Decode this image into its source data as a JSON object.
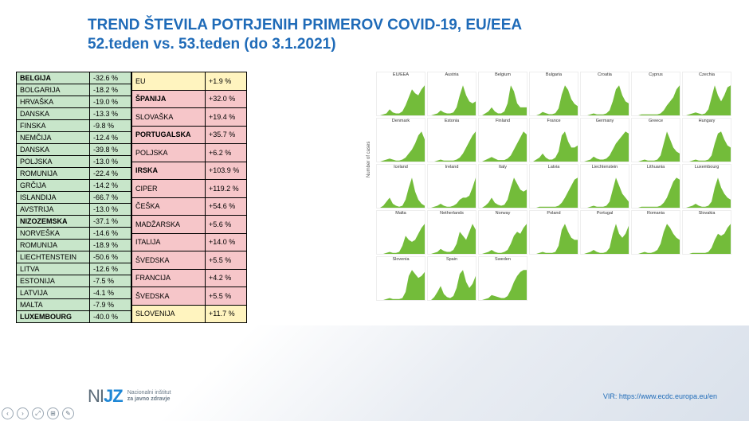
{
  "title_line1": "TREND ŠTEVILA POTRJENIH PRIMEROV COVID-19, EU/EEA",
  "title_line2": "52.teden vs. 53.teden (do 3.1.2021)",
  "source_label": "VIR: https://www.ecdc.europa.eu/en",
  "logo": {
    "mark_pre": "NI",
    "mark_accent": "JZ",
    "text1": "Nacionalni inštitut",
    "text2": "za javno zdravje"
  },
  "colors": {
    "green": "#c8e6ca",
    "pink": "#f6c6c9",
    "yellow": "#fff4bf",
    "chart_fill": "#6bb82f",
    "title": "#1f6bb8"
  },
  "table_left": [
    {
      "c": "BELGIJA",
      "v": "-32.6 %",
      "bg": "green",
      "bold": true
    },
    {
      "c": "BOLGARIJA",
      "v": "-18.2 %",
      "bg": "green"
    },
    {
      "c": "HRVAŠKA",
      "v": "-19.0 %",
      "bg": "green"
    },
    {
      "c": "DANSKA",
      "v": "-13.3 %",
      "bg": "green"
    },
    {
      "c": "FINSKA",
      "v": "-9.8 %",
      "bg": "green"
    },
    {
      "c": "NEMČIJA",
      "v": "-12.4 %",
      "bg": "green"
    },
    {
      "c": "DANSKA",
      "v": "-39.8 %",
      "bg": "green"
    },
    {
      "c": "POLJSKA",
      "v": "-13.0 %",
      "bg": "green"
    },
    {
      "c": "ROMUNIJA",
      "v": "-22.4 %",
      "bg": "green"
    },
    {
      "c": "GRČIJA",
      "v": "-14.2 %",
      "bg": "green"
    },
    {
      "c": "ISLANDIJA",
      "v": "-66.7 %",
      "bg": "green"
    },
    {
      "c": "AVSTRIJA",
      "v": "-13.0 %",
      "bg": "green"
    },
    {
      "c": "NIZOZEMSKA",
      "v": "-37.1 %",
      "bg": "green",
      "bold": true
    },
    {
      "c": "NORVEŠKA",
      "v": "-14.6 %",
      "bg": "green"
    },
    {
      "c": "ROMUNIJA",
      "v": "-18.9 %",
      "bg": "green"
    },
    {
      "c": "LIECHTENSTEIN",
      "v": "-50.6 %",
      "bg": "green"
    },
    {
      "c": "LITVA",
      "v": "-12.6 %",
      "bg": "green"
    },
    {
      "c": "ESTONIJA",
      "v": "-7.5 %",
      "bg": "green"
    },
    {
      "c": "LATVIJA",
      "v": "-4.1 %",
      "bg": "green"
    },
    {
      "c": "MALTA",
      "v": "-7.9 %",
      "bg": "green"
    },
    {
      "c": "LUXEMBOURG",
      "v": "-40.0 %",
      "bg": "green",
      "bold": true
    }
  ],
  "table_right": [
    {
      "c": "EU",
      "v": "+1.9 %",
      "bg": "yellow"
    },
    {
      "c": "ŠPANIJA",
      "v": "+32.0 %",
      "bg": "pink",
      "bold": true
    },
    {
      "c": "SLOVAŠKA",
      "v": "+19.4 %",
      "bg": "pink"
    },
    {
      "c": "PORTUGALSKA",
      "v": "+35.7 %",
      "bg": "pink",
      "bold": true
    },
    {
      "c": "POLJSKA",
      "v": "+6.2 %",
      "bg": "pink"
    },
    {
      "c": "IRSKA",
      "v": "+103.9 %",
      "bg": "pink",
      "bold": true
    },
    {
      "c": "CIPER",
      "v": "+119.2 %",
      "bg": "pink"
    },
    {
      "c": "ČEŠKA",
      "v": "+54.6 %",
      "bg": "pink"
    },
    {
      "c": "MADŽARSKA",
      "v": "+5.6 %",
      "bg": "pink"
    },
    {
      "c": "ITALIJA",
      "v": "+14.0 %",
      "bg": "pink"
    },
    {
      "c": "ŠVEDSKA",
      "v": "+5.5 %",
      "bg": "pink"
    },
    {
      "c": "FRANCIJA",
      "v": "+4.2 %",
      "bg": "pink"
    },
    {
      "c": "ŠVEDSKA",
      "v": "+5.5 %",
      "bg": "pink"
    },
    {
      "c": "SLOVENIJA",
      "v": "+11.7 %",
      "bg": "yellow"
    }
  ],
  "charts": {
    "ylabel": "Number of cases",
    "fill": "#6bb82f",
    "countries": [
      {
        "name": "EU/EEA",
        "shape": [
          0,
          0,
          1,
          2,
          6,
          3,
          2,
          2,
          4,
          10,
          18,
          26,
          22,
          20,
          26,
          30
        ]
      },
      {
        "name": "Austria",
        "shape": [
          0,
          0,
          1,
          2,
          5,
          3,
          2,
          2,
          3,
          8,
          20,
          30,
          20,
          14,
          12,
          14
        ]
      },
      {
        "name": "Belgium",
        "shape": [
          0,
          0,
          2,
          4,
          8,
          4,
          2,
          2,
          4,
          12,
          30,
          24,
          12,
          8,
          8,
          8
        ]
      },
      {
        "name": "Bulgaria",
        "shape": [
          0,
          0,
          0,
          1,
          3,
          2,
          1,
          1,
          2,
          6,
          18,
          26,
          22,
          14,
          10,
          8
        ]
      },
      {
        "name": "Croatia",
        "shape": [
          0,
          0,
          0,
          1,
          2,
          1,
          1,
          1,
          2,
          5,
          14,
          26,
          30,
          20,
          14,
          12
        ]
      },
      {
        "name": "Cyprus",
        "shape": [
          0,
          0,
          0,
          1,
          1,
          1,
          1,
          1,
          1,
          2,
          5,
          10,
          14,
          18,
          26,
          30
        ]
      },
      {
        "name": "Czechia",
        "shape": [
          0,
          0,
          1,
          2,
          3,
          2,
          1,
          2,
          6,
          18,
          30,
          20,
          14,
          20,
          28,
          30
        ]
      },
      {
        "name": "Denmark",
        "shape": [
          0,
          0,
          1,
          2,
          3,
          2,
          1,
          1,
          2,
          4,
          8,
          12,
          18,
          26,
          30,
          22
        ]
      },
      {
        "name": "Estonia",
        "shape": [
          0,
          0,
          0,
          1,
          2,
          1,
          1,
          1,
          1,
          2,
          4,
          8,
          14,
          20,
          26,
          30
        ]
      },
      {
        "name": "Finland",
        "shape": [
          0,
          0,
          1,
          2,
          3,
          2,
          1,
          1,
          1,
          2,
          4,
          8,
          12,
          16,
          20,
          18
        ]
      },
      {
        "name": "France",
        "shape": [
          0,
          0,
          2,
          4,
          8,
          4,
          2,
          2,
          4,
          10,
          26,
          30,
          20,
          14,
          14,
          16
        ]
      },
      {
        "name": "Germany",
        "shape": [
          0,
          0,
          1,
          2,
          5,
          3,
          2,
          2,
          3,
          6,
          12,
          18,
          22,
          26,
          30,
          28
        ]
      },
      {
        "name": "Greece",
        "shape": [
          0,
          0,
          0,
          1,
          2,
          1,
          1,
          1,
          2,
          6,
          18,
          30,
          22,
          14,
          10,
          8
        ]
      },
      {
        "name": "Hungary",
        "shape": [
          0,
          0,
          0,
          1,
          2,
          1,
          1,
          1,
          2,
          6,
          18,
          28,
          30,
          22,
          16,
          14
        ]
      },
      {
        "name": "Iceland",
        "shape": [
          0,
          0,
          2,
          6,
          10,
          4,
          2,
          1,
          2,
          8,
          20,
          30,
          16,
          8,
          4,
          2
        ]
      },
      {
        "name": "Ireland",
        "shape": [
          0,
          0,
          1,
          2,
          4,
          2,
          1,
          1,
          2,
          4,
          8,
          10,
          10,
          12,
          20,
          30
        ]
      },
      {
        "name": "Italy",
        "shape": [
          0,
          0,
          2,
          5,
          10,
          5,
          3,
          2,
          3,
          8,
          20,
          30,
          24,
          18,
          16,
          18
        ]
      },
      {
        "name": "Latvia",
        "shape": [
          0,
          0,
          0,
          1,
          1,
          1,
          1,
          1,
          1,
          2,
          5,
          10,
          16,
          22,
          28,
          30
        ]
      },
      {
        "name": "Liechtenstein",
        "shape": [
          0,
          0,
          0,
          1,
          2,
          1,
          1,
          1,
          2,
          6,
          18,
          30,
          22,
          14,
          10,
          6
        ]
      },
      {
        "name": "Lithuania",
        "shape": [
          0,
          0,
          0,
          1,
          1,
          1,
          1,
          1,
          1,
          2,
          5,
          10,
          18,
          26,
          30,
          28
        ]
      },
      {
        "name": "Luxembourg",
        "shape": [
          0,
          0,
          1,
          2,
          4,
          2,
          1,
          1,
          2,
          6,
          20,
          30,
          20,
          14,
          10,
          8
        ]
      },
      {
        "name": "Malta",
        "shape": [
          0,
          0,
          0,
          1,
          2,
          1,
          1,
          2,
          8,
          18,
          14,
          12,
          14,
          20,
          26,
          30
        ]
      },
      {
        "name": "Netherlands",
        "shape": [
          0,
          0,
          1,
          2,
          5,
          3,
          2,
          2,
          4,
          10,
          22,
          18,
          14,
          22,
          30,
          24
        ]
      },
      {
        "name": "Norway",
        "shape": [
          0,
          0,
          1,
          2,
          4,
          2,
          1,
          1,
          2,
          4,
          10,
          18,
          22,
          20,
          26,
          30
        ]
      },
      {
        "name": "Poland",
        "shape": [
          0,
          0,
          0,
          1,
          2,
          1,
          1,
          1,
          2,
          8,
          24,
          30,
          22,
          16,
          14,
          14
        ]
      },
      {
        "name": "Portugal",
        "shape": [
          0,
          0,
          1,
          2,
          4,
          2,
          1,
          1,
          2,
          6,
          20,
          30,
          20,
          16,
          20,
          28
        ]
      },
      {
        "name": "Romania",
        "shape": [
          0,
          0,
          0,
          1,
          2,
          1,
          1,
          2,
          4,
          10,
          22,
          30,
          26,
          20,
          16,
          14
        ]
      },
      {
        "name": "Slovakia",
        "shape": [
          0,
          0,
          0,
          1,
          1,
          1,
          1,
          1,
          2,
          6,
          14,
          20,
          18,
          20,
          26,
          30
        ]
      },
      {
        "name": "Slovenia",
        "shape": [
          0,
          0,
          0,
          1,
          2,
          1,
          1,
          1,
          2,
          8,
          24,
          30,
          26,
          22,
          24,
          28
        ]
      },
      {
        "name": "Spain",
        "shape": [
          0,
          0,
          3,
          8,
          14,
          6,
          3,
          2,
          4,
          12,
          26,
          30,
          18,
          12,
          16,
          24
        ]
      },
      {
        "name": "Sweden",
        "shape": [
          0,
          0,
          1,
          2,
          5,
          4,
          3,
          2,
          2,
          4,
          10,
          18,
          24,
          28,
          30,
          30
        ]
      }
    ]
  },
  "toolbar_icons": [
    "‹",
    "›",
    "⤢",
    "⊞",
    "✎"
  ]
}
